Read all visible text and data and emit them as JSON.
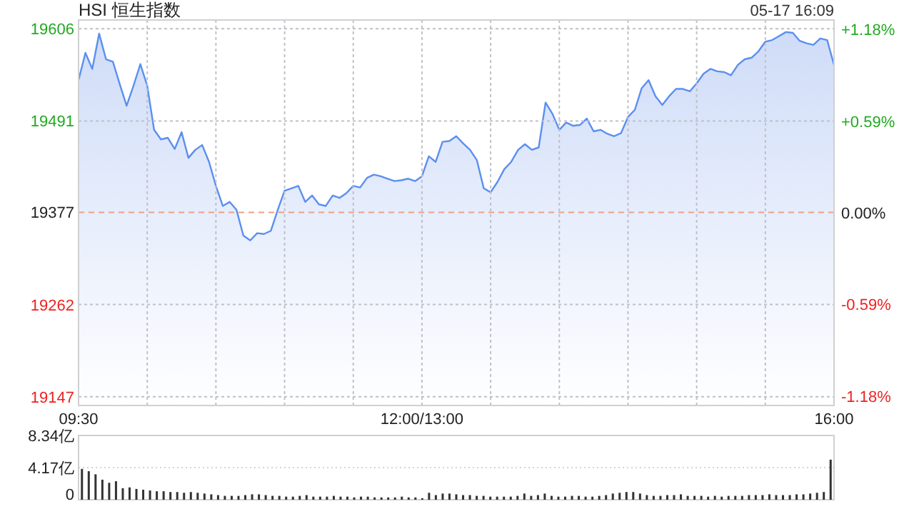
{
  "chart_data": [
    {
      "type": "area",
      "title": "HSI 恒生指数",
      "annotations": [
        "05-17 16:09"
      ],
      "categories": [
        "09:30",
        null,
        null,
        null,
        null,
        null,
        null,
        null,
        null,
        null,
        null,
        null,
        null,
        null,
        null,
        null,
        null,
        null,
        null,
        null,
        null,
        null,
        null,
        null,
        null,
        null,
        null,
        null,
        null,
        null,
        null,
        null,
        null,
        null,
        null,
        null,
        null,
        null,
        null,
        null,
        null,
        null,
        null,
        null,
        null,
        null,
        null,
        null,
        null,
        null,
        "12:00/13:00",
        null,
        null,
        null,
        null,
        null,
        null,
        null,
        null,
        null,
        null,
        null,
        null,
        null,
        null,
        null,
        null,
        null,
        null,
        null,
        null,
        null,
        null,
        null,
        null,
        null,
        null,
        null,
        null,
        null,
        null,
        null,
        null,
        null,
        null,
        null,
        null,
        null,
        null,
        null,
        null,
        null,
        null,
        null,
        null,
        null,
        null,
        null,
        null,
        null,
        null,
        null,
        null,
        null,
        null,
        null,
        null,
        null,
        null,
        null,
        "16:00"
      ],
      "series": [
        {
          "color": "#5b8ff0",
          "values": [
            19542,
            19576,
            19556,
            19600,
            19568,
            19565,
            19537,
            19510,
            19535,
            19562,
            19535,
            19480,
            19468,
            19470,
            19456,
            19477,
            19445,
            19455,
            19461,
            19440,
            19410,
            19385,
            19390,
            19380,
            19348,
            19342,
            19351,
            19350,
            19354,
            19380,
            19404,
            19407,
            19410,
            19390,
            19398,
            19387,
            19385,
            19398,
            19395,
            19401,
            19410,
            19408,
            19420,
            19424,
            19422,
            19419,
            19416,
            19417,
            19419,
            19416,
            19422,
            19447,
            19440,
            19465,
            19466,
            19472,
            19463,
            19455,
            19442,
            19407,
            19402,
            19415,
            19431,
            19440,
            19455,
            19462,
            19455,
            19458,
            19514,
            19500,
            19480,
            19489,
            19485,
            19486,
            19494,
            19478,
            19480,
            19475,
            19472,
            19476,
            19496,
            19505,
            19532,
            19542,
            19522,
            19511,
            19522,
            19531,
            19531,
            19528,
            19538,
            19550,
            19556,
            19553,
            19552,
            19548,
            19561,
            19568,
            19570,
            19578,
            19590,
            19592,
            19597,
            19602,
            19601,
            19591,
            19588,
            19586,
            19594,
            19592,
            19561
          ]
        }
      ],
      "ylim": [
        19136,
        19617
      ],
      "yticks": [
        19147,
        19262,
        19377,
        19491,
        19606
      ],
      "y2lim": [
        -1.24,
        1.24
      ],
      "y2ticks": [
        {
          "value": -1.18,
          "label": "-1.18%"
        },
        {
          "value": -0.59,
          "label": "-0.59%"
        },
        {
          "value": 0,
          "label": "0.00%"
        },
        {
          "value": 0.59,
          "label": "+0.59%"
        },
        {
          "value": 1.18,
          "label": "+1.18%"
        }
      ],
      "grid": true,
      "ref_lines": [
        {
          "axis": "y",
          "value": 19377,
          "color": "#f0a080",
          "line_style": "dashed"
        }
      ]
    },
    {
      "type": "bar",
      "tick_labels": "y",
      "grid": "y",
      "color": "#333333",
      "categories": [
        null,
        null,
        null,
        null,
        null,
        null,
        null,
        null,
        null,
        null,
        null,
        null,
        null,
        null,
        null,
        null,
        null,
        null,
        null,
        null,
        null,
        null,
        null,
        null,
        null,
        null,
        null,
        null,
        null,
        null,
        null,
        null,
        null,
        null,
        null,
        null,
        null,
        null,
        null,
        null,
        null,
        null,
        null,
        null,
        null,
        null,
        null,
        null,
        null,
        null,
        null,
        null,
        null,
        null,
        null,
        null,
        null,
        null,
        null,
        null,
        null,
        null,
        null,
        null,
        null,
        null,
        null,
        null,
        null,
        null,
        null,
        null,
        null,
        null,
        null,
        null,
        null,
        null,
        null,
        null,
        null,
        null,
        null,
        null,
        null,
        null,
        null,
        null,
        null,
        null,
        null,
        null,
        null,
        null,
        null,
        null,
        null,
        null,
        null,
        null,
        null,
        null,
        null,
        null,
        null,
        null,
        null,
        null,
        null,
        null,
        null
      ],
      "values": [
        4.0,
        3.7,
        3.3,
        2.6,
        2.2,
        2.4,
        1.5,
        1.6,
        1.4,
        1.3,
        1.2,
        1.1,
        1.1,
        1.0,
        1.0,
        0.9,
        1.0,
        0.9,
        0.8,
        0.7,
        0.6,
        0.5,
        0.5,
        0.5,
        0.6,
        0.7,
        0.7,
        0.6,
        0.5,
        0.5,
        0.4,
        0.4,
        0.5,
        0.6,
        0.4,
        0.4,
        0.4,
        0.5,
        0.4,
        0.4,
        0.3,
        0.4,
        0.4,
        0.3,
        0.3,
        0.3,
        0.3,
        0.4,
        0.3,
        0.3,
        0.2,
        0.9,
        0.6,
        0.8,
        0.8,
        0.7,
        0.6,
        0.6,
        0.5,
        0.5,
        0.4,
        0.4,
        0.4,
        0.4,
        0.5,
        0.8,
        0.5,
        0.6,
        0.8,
        0.5,
        0.4,
        0.4,
        0.5,
        0.5,
        0.4,
        0.4,
        0.5,
        0.6,
        0.8,
        0.9,
        1.0,
        1.0,
        0.8,
        0.6,
        0.5,
        0.5,
        0.6,
        0.6,
        0.7,
        0.5,
        0.5,
        0.5,
        0.4,
        0.5,
        0.4,
        0.5,
        0.5,
        0.5,
        0.6,
        0.6,
        0.6,
        0.7,
        0.6,
        0.6,
        0.6,
        0.7,
        0.7,
        0.8,
        0.9,
        1.0,
        5.2
      ],
      "ylim": [
        0,
        8.34
      ],
      "yticks": [
        0,
        {
          "value": 4.17,
          "label": "4.17亿"
        },
        {
          "value": 8.34,
          "label": "8.34亿"
        }
      ]
    }
  ]
}
